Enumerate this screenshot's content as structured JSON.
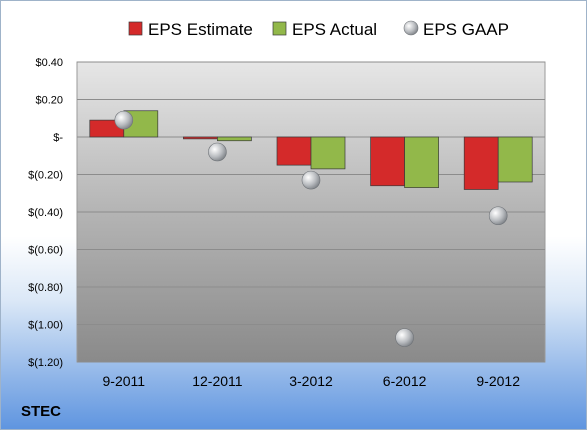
{
  "chart_data": {
    "type": "bar",
    "categories": [
      "9-2011",
      "12-2011",
      "3-2012",
      "6-2012",
      "9-2012"
    ],
    "series": [
      {
        "name": "EPS Estimate",
        "kind": "bar",
        "color": "#d42a2a",
        "values": [
          0.09,
          -0.01,
          -0.15,
          -0.26,
          -0.28
        ]
      },
      {
        "name": "EPS Actual",
        "kind": "bar",
        "color": "#92b84a",
        "values": [
          0.14,
          -0.02,
          -0.17,
          -0.27,
          -0.24
        ]
      },
      {
        "name": "EPS GAAP",
        "kind": "marker",
        "color": "#b9bcc0",
        "values": [
          0.09,
          -0.08,
          -0.23,
          -1.07,
          -0.42
        ]
      }
    ],
    "ylim": [
      -1.2,
      0.4
    ],
    "yticks": [
      0.4,
      0.2,
      0,
      -0.2,
      -0.4,
      -0.6,
      -0.8,
      -1.0,
      -1.2
    ],
    "ytick_labels": [
      "$0.40",
      "$0.20",
      "$-",
      "$(0.20)",
      "$(0.40)",
      "$(0.60)",
      "$(0.80)",
      "$(1.00)",
      "$(1.20)"
    ],
    "grid": true,
    "legend_position": "top"
  },
  "footer": {
    "ticker": "STEC"
  }
}
